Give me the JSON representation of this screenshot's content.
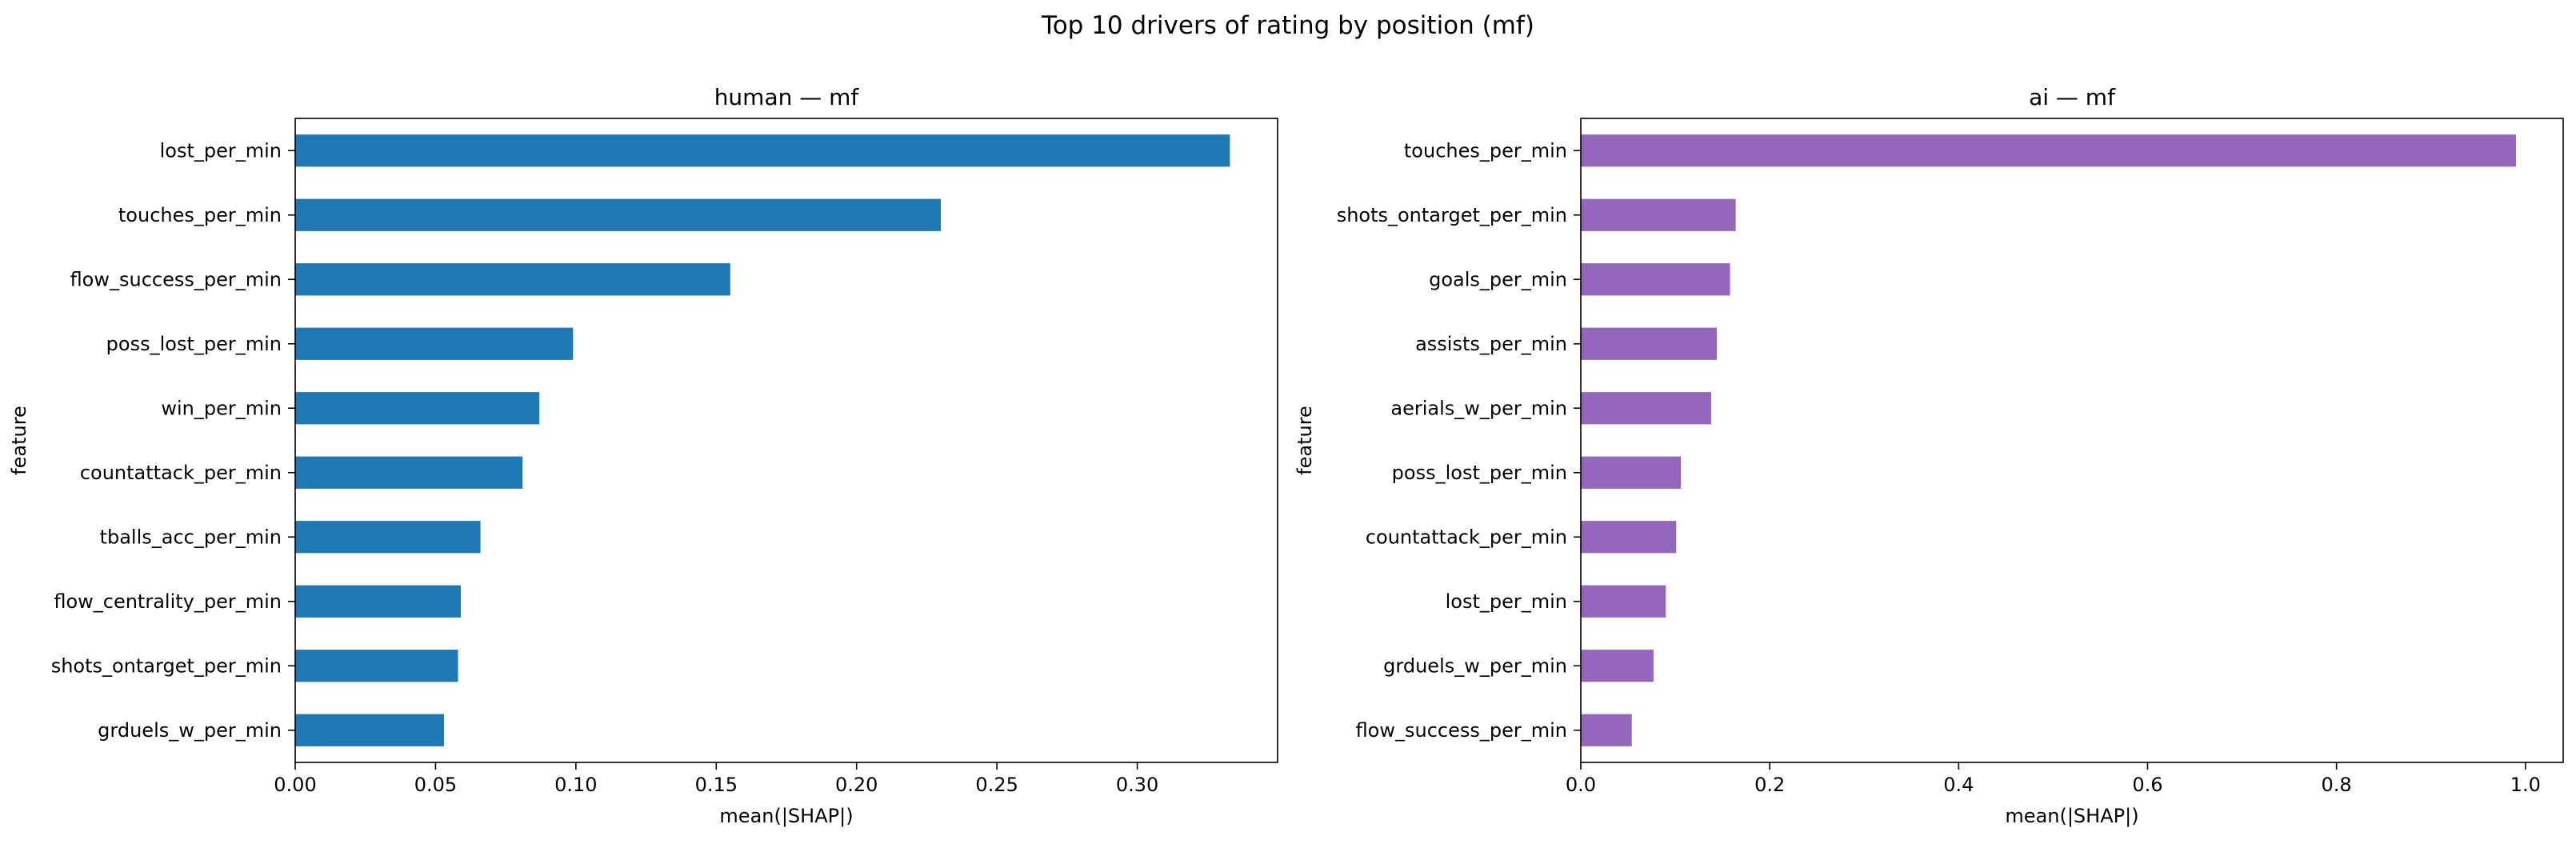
{
  "figure": {
    "suptitle": "Top 10 drivers of rating by position (mf)"
  },
  "chart_data": [
    {
      "type": "bar",
      "orientation": "horizontal",
      "title": "human — mf",
      "xlabel": "mean(|SHAP|)",
      "ylabel": "feature",
      "xlim": [
        0,
        0.35
      ],
      "xticks": [
        0.0,
        0.05,
        0.1,
        0.15,
        0.2,
        0.25,
        0.3
      ],
      "xtick_labels": [
        "0.00",
        "0.05",
        "0.10",
        "0.15",
        "0.20",
        "0.25",
        "0.30"
      ],
      "grid": false,
      "color": "#1f77b4",
      "categories": [
        "lost_per_min",
        "touches_per_min",
        "flow_success_per_min",
        "poss_lost_per_min",
        "win_per_min",
        "countattack_per_min",
        "tballs_acc_per_min",
        "flow_centrality_per_min",
        "shots_ontarget_per_min",
        "grduels_w_per_min"
      ],
      "values": [
        0.333,
        0.23,
        0.155,
        0.099,
        0.087,
        0.081,
        0.066,
        0.059,
        0.058,
        0.053
      ]
    },
    {
      "type": "bar",
      "orientation": "horizontal",
      "title": "ai — mf",
      "xlabel": "mean(|SHAP|)",
      "ylabel": "feature",
      "xlim": [
        0,
        1.04
      ],
      "xticks": [
        0.0,
        0.2,
        0.4,
        0.6,
        0.8,
        1.0
      ],
      "xtick_labels": [
        "0.0",
        "0.2",
        "0.4",
        "0.6",
        "0.8",
        "1.0"
      ],
      "grid": false,
      "color": "#9467bd",
      "categories": [
        "touches_per_min",
        "shots_ontarget_per_min",
        "goals_per_min",
        "assists_per_min",
        "aerials_w_per_min",
        "poss_lost_per_min",
        "countattack_per_min",
        "lost_per_min",
        "grduels_w_per_min",
        "flow_success_per_min"
      ],
      "values": [
        0.99,
        0.164,
        0.158,
        0.144,
        0.138,
        0.106,
        0.101,
        0.09,
        0.077,
        0.054
      ]
    }
  ]
}
